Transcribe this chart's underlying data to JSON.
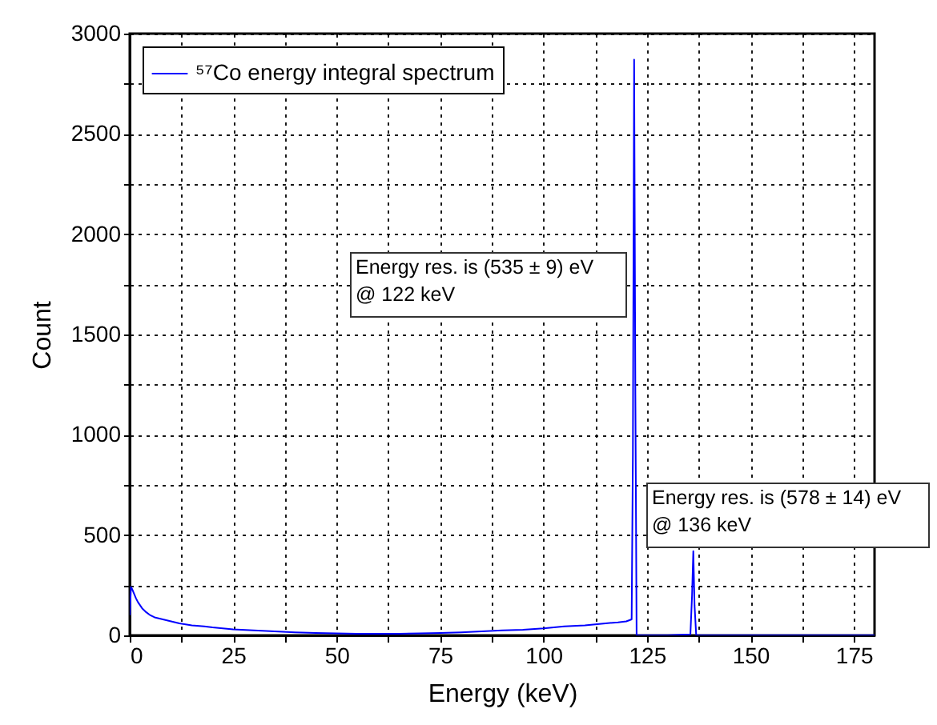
{
  "chart_data": {
    "type": "line",
    "xlabel": "Energy (keV)",
    "ylabel": "Count",
    "annotations": [
      "Energy res. is (535 ± 9) eV\n @ 122 keV",
      "Energy res. is (578 ± 14) eV\n @ 136 keV"
    ],
    "x": [
      0,
      0.3,
      0.6,
      1,
      1.5,
      2,
      3,
      4,
      5,
      6,
      8,
      10,
      12,
      15,
      18,
      20,
      25,
      30,
      35,
      40,
      45,
      50,
      55,
      60,
      65,
      70,
      75,
      80,
      85,
      90,
      95,
      100,
      105,
      110,
      115,
      118,
      120,
      121.3,
      121.6,
      121.9,
      122.2,
      122.5,
      123,
      130,
      135.5,
      135.9,
      136.2,
      136.5,
      136.9,
      140,
      160,
      180
    ],
    "series": [
      {
        "name": "⁵⁷Co energy integral spectrum",
        "color": "#0000ff",
        "values": [
          100,
          240,
          230,
          210,
          185,
          165,
          135,
          115,
          100,
          90,
          80,
          70,
          60,
          50,
          45,
          40,
          30,
          25,
          20,
          15,
          12,
          10,
          8,
          8,
          8,
          10,
          12,
          15,
          20,
          25,
          28,
          35,
          45,
          50,
          60,
          65,
          70,
          80,
          900,
          2870,
          1200,
          0,
          0,
          0,
          5,
          200,
          420,
          150,
          0,
          0,
          0,
          0
        ]
      }
    ],
    "xlim": [
      0,
      180
    ],
    "xticks": [
      0,
      {
        "value": 12.5,
        "label": null
      },
      25,
      {
        "value": 37.5,
        "label": null
      },
      50,
      {
        "value": 62.5,
        "label": null
      },
      75,
      {
        "value": 87.5,
        "label": null
      },
      100,
      {
        "value": 112.5,
        "label": null
      },
      125,
      {
        "value": 137.5,
        "label": null
      },
      150,
      {
        "value": 162.5,
        "label": null
      },
      175
    ],
    "ylim": [
      0,
      3000
    ],
    "yticks": [
      0,
      {
        "value": 250,
        "label": null
      },
      500,
      {
        "value": 750,
        "label": null
      },
      1000,
      {
        "value": 1250,
        "label": null
      },
      1500,
      {
        "value": 1750,
        "label": null
      },
      2000,
      {
        "value": 2250,
        "label": null
      },
      2500,
      {
        "value": 2750,
        "label": null
      },
      3000
    ],
    "grid": true,
    "legend": "top left",
    "marker": "none",
    "line_style": "solid"
  }
}
